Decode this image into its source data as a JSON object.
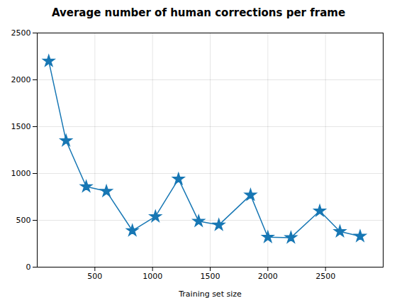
{
  "chart_data": {
    "type": "line",
    "title": "Average number of human corrections per frame",
    "xlabel": "Training set size",
    "x": [
      100,
      250,
      425,
      600,
      825,
      1025,
      1225,
      1400,
      1575,
      1850,
      2000,
      2200,
      2450,
      2625,
      2800
    ],
    "values": [
      2200,
      1350,
      860,
      810,
      390,
      540,
      940,
      490,
      450,
      770,
      320,
      315,
      600,
      380,
      330
    ],
    "color": "#1777B4",
    "marker": "star",
    "line_style": "solid",
    "xlim": [
      0,
      3000
    ],
    "ylim": [
      0,
      2500
    ],
    "xticks": [
      500,
      1000,
      1500,
      2000,
      2500
    ],
    "yticks": [
      0,
      500,
      1000,
      1500,
      2000,
      2500
    ],
    "grid": true
  }
}
